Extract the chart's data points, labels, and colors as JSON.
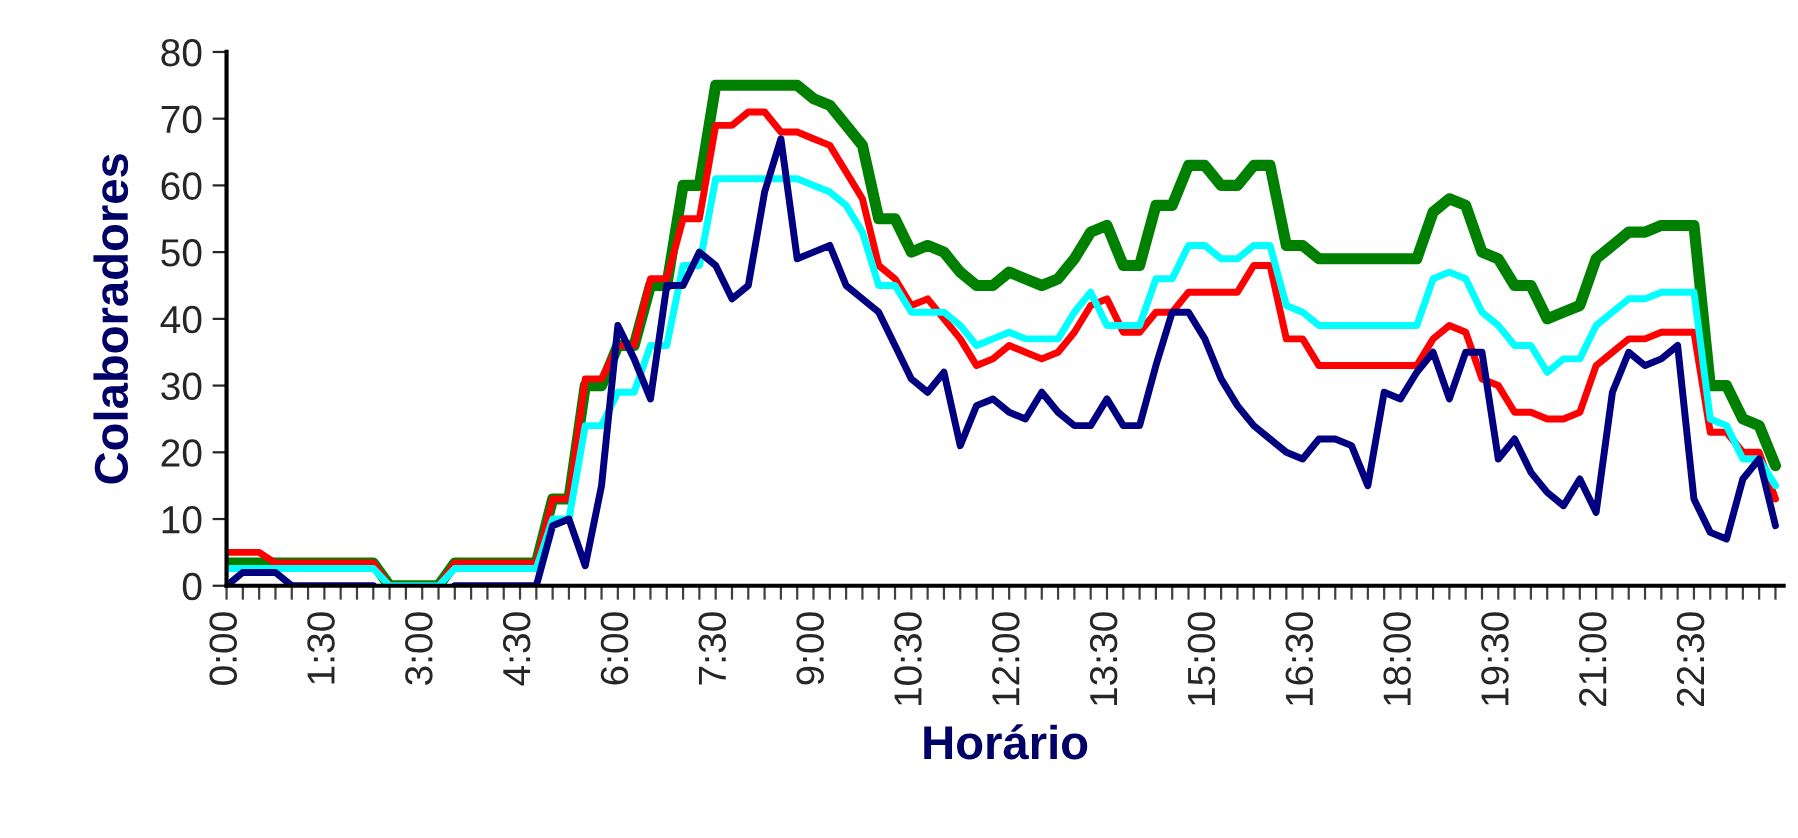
{
  "chart_data": {
    "type": "line",
    "xlabel": "Horário",
    "ylabel": "Colaboradores",
    "categories": [
      "0:00",
      null,
      null,
      null,
      null,
      null,
      "1:30",
      null,
      null,
      null,
      null,
      null,
      "3:00",
      null,
      null,
      null,
      null,
      null,
      "4:30",
      null,
      null,
      null,
      null,
      null,
      "6:00",
      null,
      null,
      null,
      null,
      null,
      "7:30",
      null,
      null,
      null,
      null,
      null,
      "9:00",
      null,
      null,
      null,
      null,
      null,
      "10:30",
      null,
      null,
      null,
      null,
      null,
      "12:00",
      null,
      null,
      null,
      null,
      null,
      "13:30",
      null,
      null,
      null,
      null,
      null,
      "15:00",
      null,
      null,
      null,
      null,
      null,
      "16:30",
      null,
      null,
      null,
      null,
      null,
      "18:00",
      null,
      null,
      null,
      null,
      null,
      "19:30",
      null,
      null,
      null,
      null,
      null,
      "21:00",
      null,
      null,
      null,
      null,
      null,
      "22:30",
      null,
      null,
      null,
      null,
      null
    ],
    "series": [
      {
        "color": "#008000",
        "values": [
          3.4,
          3.4,
          3.4,
          3.4,
          3.4,
          3.4,
          3.4,
          3.4,
          3.4,
          3.4,
          0,
          0,
          0,
          0,
          3.4,
          3.4,
          3.4,
          3.4,
          3.4,
          3.4,
          13,
          13,
          30,
          30,
          36,
          36,
          45,
          45,
          60,
          60,
          75,
          75,
          75,
          75,
          75,
          75,
          73,
          72,
          69,
          66,
          55,
          55,
          50,
          51,
          50,
          47,
          45,
          45,
          47,
          46,
          45,
          46,
          49,
          53,
          54,
          48,
          48,
          57,
          57,
          63,
          63,
          60,
          60,
          63,
          63,
          51,
          51,
          49,
          49,
          49,
          49,
          49,
          49,
          49,
          56,
          58,
          57,
          50,
          49,
          45,
          45,
          40,
          41,
          42,
          49,
          51,
          53,
          53,
          54,
          54,
          54,
          30,
          30,
          25,
          24,
          18
        ]
      },
      {
        "color": "#ff0000",
        "values": [
          5,
          5,
          5,
          3.4,
          3.4,
          3.4,
          3.4,
          3.4,
          3.4,
          3.4,
          0,
          0,
          0,
          0,
          3.4,
          3.4,
          3.4,
          3.4,
          3.4,
          3.4,
          13,
          13,
          31,
          31,
          36,
          36,
          46,
          46,
          55,
          55,
          69,
          69,
          71,
          71,
          68,
          68,
          67,
          66,
          62,
          58,
          48,
          46,
          42,
          43,
          40,
          37,
          33,
          34,
          36,
          35,
          34,
          35,
          38,
          42,
          43,
          38,
          38,
          41,
          41,
          44,
          44,
          44,
          44,
          48,
          48,
          37,
          37,
          33,
          33,
          33,
          33,
          33,
          33,
          33,
          37,
          39,
          38,
          31,
          30,
          26,
          26,
          25,
          25,
          26,
          33,
          35,
          37,
          37,
          38,
          38,
          38,
          23,
          23,
          20,
          20,
          13
        ]
      },
      {
        "color": "#00ffff",
        "values": [
          2.6,
          2.6,
          2.6,
          2.6,
          2.6,
          2.6,
          2.6,
          2.6,
          2.6,
          2.6,
          0,
          0,
          0,
          0,
          2.6,
          2.6,
          2.6,
          2.6,
          2.6,
          2.6,
          10,
          10,
          24,
          24,
          29,
          29,
          36,
          36,
          48,
          48,
          61,
          61,
          61,
          61,
          61,
          61,
          60,
          59,
          57,
          53,
          45,
          45,
          41,
          41,
          41,
          39,
          36,
          37,
          38,
          37,
          37,
          37,
          41,
          44,
          39,
          39,
          39,
          46,
          46,
          51,
          51,
          49,
          49,
          51,
          51,
          42,
          41,
          39,
          39,
          39,
          39,
          39,
          39,
          39,
          46,
          47,
          46,
          41,
          39,
          36,
          36,
          32,
          34,
          34,
          39,
          41,
          43,
          43,
          44,
          44,
          44,
          25,
          24,
          19,
          19,
          15
        ]
      },
      {
        "color": "#000080",
        "values": [
          0,
          2,
          2,
          2,
          0,
          0,
          0,
          0,
          0,
          0,
          null,
          null,
          null,
          null,
          0,
          0,
          0,
          0,
          0,
          0,
          9,
          10,
          3,
          15,
          39,
          34,
          28,
          45,
          45,
          50,
          48,
          43,
          45,
          59,
          67,
          49,
          50,
          51,
          45,
          43,
          41,
          36,
          31,
          29,
          32,
          21,
          27,
          28,
          26,
          25,
          29,
          26,
          24,
          24,
          28,
          24,
          24,
          33,
          41,
          41,
          37,
          31,
          27,
          24,
          22,
          20,
          19,
          22,
          22,
          21,
          15,
          29,
          28,
          32,
          35,
          28,
          35,
          35,
          19,
          22,
          17,
          14,
          12,
          16,
          11,
          29,
          35,
          33,
          34,
          36,
          13,
          8,
          7,
          16,
          19,
          9
        ]
      }
    ],
    "ylim": [
      0,
      80
    ],
    "yticks": [
      0,
      10,
      20,
      30,
      40,
      50,
      60,
      70,
      80
    ],
    "grid": false,
    "legend": false
  }
}
